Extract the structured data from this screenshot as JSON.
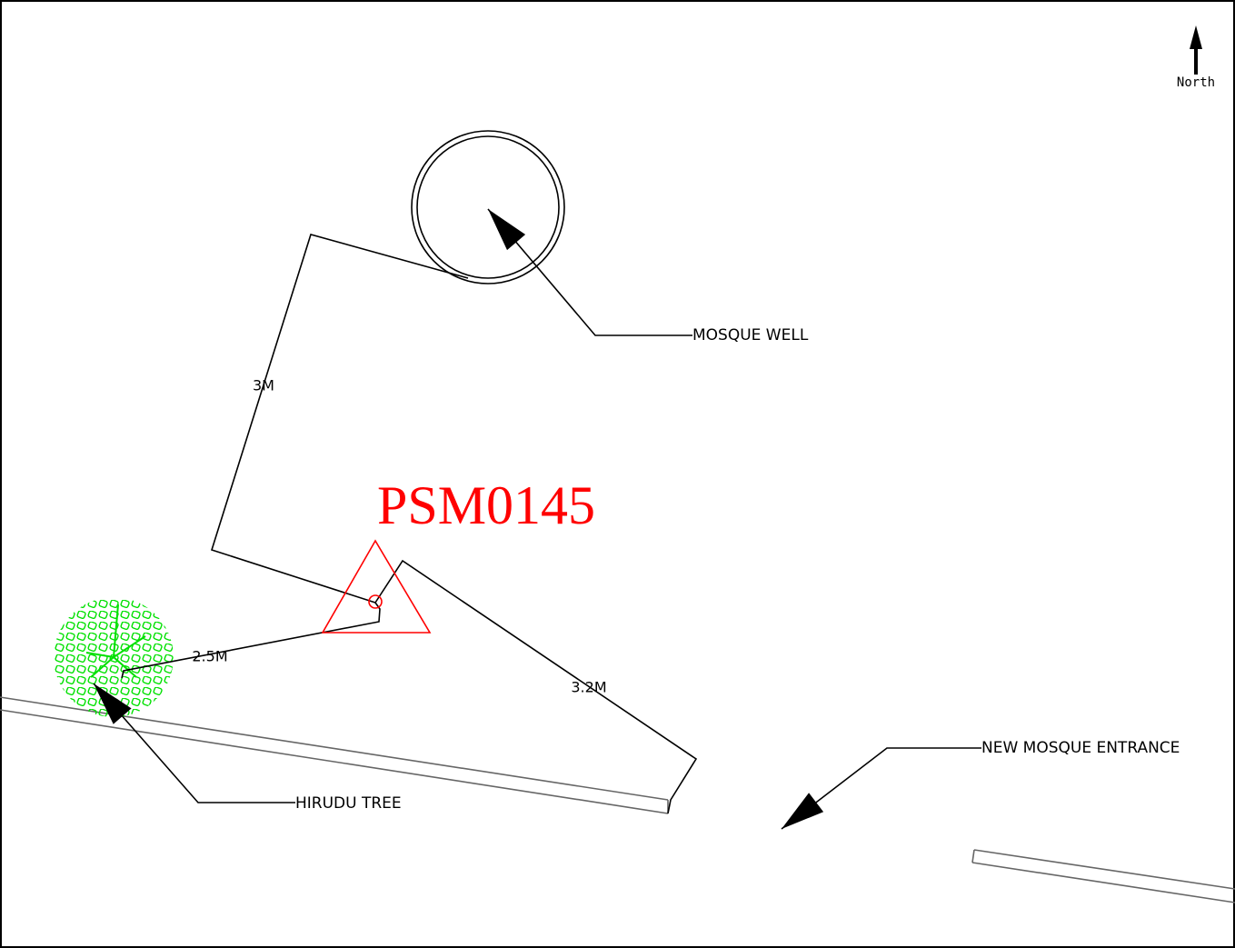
{
  "title": "PSM0145",
  "north": "North",
  "labels": {
    "well": "MOSQUE WELL",
    "tree": "HIRUDU TREE",
    "entrance": "NEW MOSQUE ENTRANCE"
  },
  "dimensions": {
    "well": "3M",
    "tree": "2.5M",
    "entrance": "3.2M"
  }
}
